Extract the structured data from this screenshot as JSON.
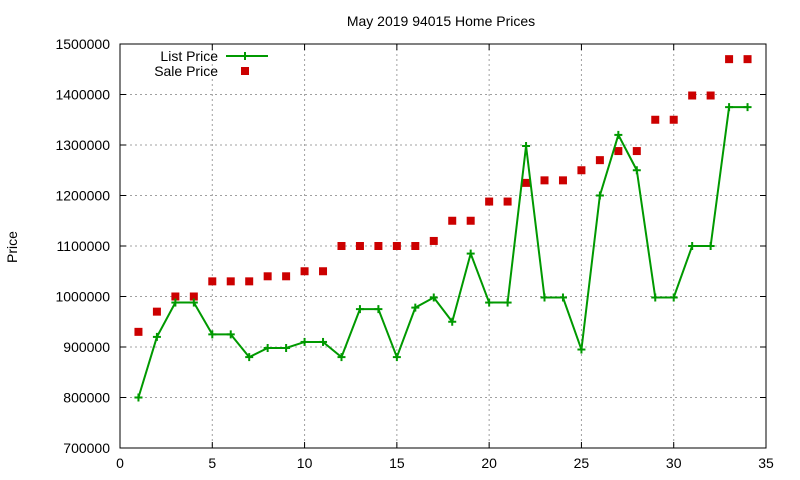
{
  "chart_data": {
    "type": "line",
    "title": "May 2019 94015 Home Prices",
    "xlabel": "",
    "ylabel": "Price",
    "xlim": [
      0,
      35
    ],
    "ylim": [
      700000,
      1500000
    ],
    "x_ticks": [
      0,
      5,
      10,
      15,
      20,
      25,
      30,
      35
    ],
    "y_ticks": [
      700000,
      800000,
      900000,
      1000000,
      1100000,
      1200000,
      1300000,
      1400000,
      1500000
    ],
    "grid": true,
    "legend_position": "top-left",
    "series": [
      {
        "name": "List Price",
        "style": "line-with-plus-markers",
        "color": "#009900",
        "x": [
          1,
          2,
          3,
          4,
          5,
          6,
          7,
          8,
          9,
          10,
          11,
          12,
          13,
          14,
          15,
          16,
          17,
          18,
          19,
          20,
          21,
          22,
          23,
          24,
          25,
          26,
          27,
          28,
          29,
          30,
          31,
          32,
          33,
          34
        ],
        "values": [
          800000,
          920000,
          988000,
          988000,
          925000,
          925000,
          880000,
          898000,
          898000,
          910000,
          910000,
          880000,
          975000,
          975000,
          880000,
          978000,
          998000,
          950000,
          1085000,
          988000,
          988000,
          1298000,
          998000,
          998000,
          895000,
          1200000,
          1320000,
          1250000,
          998000,
          998000,
          1100000,
          1100000,
          1375000,
          1375000
        ]
      },
      {
        "name": "Sale Price",
        "style": "square-markers",
        "color": "#cc0000",
        "x": [
          1,
          2,
          3,
          4,
          5,
          6,
          7,
          8,
          9,
          10,
          11,
          12,
          13,
          14,
          15,
          16,
          17,
          18,
          19,
          20,
          21,
          22,
          23,
          24,
          25,
          26,
          27,
          28,
          29,
          30,
          31,
          32,
          33,
          34
        ],
        "values": [
          930000,
          970000,
          1000000,
          1000000,
          1030000,
          1030000,
          1030000,
          1040000,
          1040000,
          1050000,
          1050000,
          1100000,
          1100000,
          1100000,
          1100000,
          1100000,
          1110000,
          1150000,
          1150000,
          1188000,
          1188000,
          1225000,
          1230000,
          1230000,
          1250000,
          1270000,
          1288000,
          1288000,
          1350000,
          1350000,
          1398000,
          1398000,
          1470000,
          1470000
        ]
      }
    ]
  }
}
